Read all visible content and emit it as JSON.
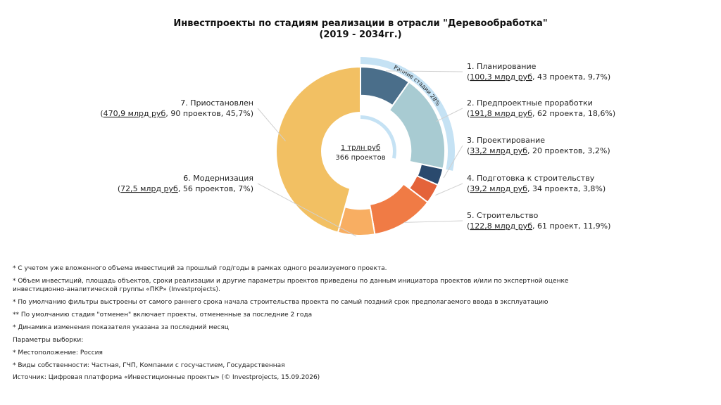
{
  "title_line1": "Инвестпроекты по стадиям реализации в отрасли \"Деревообработка\"",
  "title_line2": "(2019 - 2034гг.)",
  "center": {
    "line1": "1 трлн руб",
    "line2": "366 проектов"
  },
  "arc_label": "Ранние стадии 28%",
  "colors": {
    "accent_arc": "#c5e2f4",
    "leader": "#d0d0d0"
  },
  "chart_data": {
    "type": "pie",
    "donut": true,
    "unit": "млрд руб",
    "total": {
      "value_text": "1 трлн руб",
      "projects": 366
    },
    "slices": [
      {
        "name": "1. Планирование",
        "value": 100.3,
        "projects": 43,
        "percent": 9.7,
        "amount_text": "100,3 млрд руб",
        "rest_text": ", 43 проекта, 9,7%)",
        "color": "#4a6e8a"
      },
      {
        "name": "2. Предпроектные проработки",
        "value": 191.8,
        "projects": 62,
        "percent": 18.6,
        "amount_text": "191,8 млрд руб",
        "rest_text": ", 62 проекта, 18,6%)",
        "color": "#a8cbd2"
      },
      {
        "name": "3. Проектирование",
        "value": 33.2,
        "projects": 20,
        "percent": 3.2,
        "amount_text": "33,2 млрд руб",
        "rest_text": ", 20 проектов, 3,2%)",
        "color": "#2a4a6e"
      },
      {
        "name": "4. Подготовка к строительству",
        "value": 39.2,
        "projects": 34,
        "percent": 3.8,
        "amount_text": "39,2 млрд руб",
        "rest_text": ", 34 проекта, 3,8%)",
        "color": "#e4633a"
      },
      {
        "name": "5. Строительство",
        "value": 122.8,
        "projects": 61,
        "percent": 11.9,
        "amount_text": "122,8 млрд руб",
        "rest_text": ", 61 проект, 11,9%)",
        "color": "#f07b45"
      },
      {
        "name": "6. Модернизация",
        "value": 72.5,
        "projects": 56,
        "percent": 7,
        "amount_text": "72,5 млрд руб",
        "rest_text": ", 56 проектов, 7%)",
        "color": "#f8ae62"
      },
      {
        "name": "7. Приостановлен",
        "value": 470.9,
        "projects": 90,
        "percent": 45.7,
        "amount_text": "470,9 млрд руб",
        "rest_text": ", 90 проектов, 45,7%)",
        "color": "#f2c063"
      }
    ],
    "early_stages": {
      "label": "Ранние стадии 28%",
      "percent": 28,
      "stages": [
        1,
        2
      ]
    }
  },
  "notes": [
    "* С учетом уже вложенного объема инвестиций за прошлый год/годы в рамках одного реализуемого проекта.",
    "* Объем инвестиций, площадь объектов, сроки реализации и другие параметры проектов приведены по данным инициатора проектов и/или по экспертной оценке инвестиционно-аналитической группы «ПКР» (Investprojects).",
    "* По умолчанию фильтры выстроены от самого раннего срока начала строительства проекта по самый поздний срок предполагаемого ввода в эксплуатацию",
    "** По умолчанию стадия \"отменен\" включает проекты, отмененные за последние 2 года",
    "* Динамика изменения показателя указана за последний месяц",
    "Параметры выборки:",
    "* Местоположение: Россия",
    "* Виды собственности: Частная, ГЧП, Компании с госучастием, Государственная"
  ],
  "source": "Источник: Цифровая платформа «Инвестиционные проекты» (© Investprojects, 15.09.2026)"
}
